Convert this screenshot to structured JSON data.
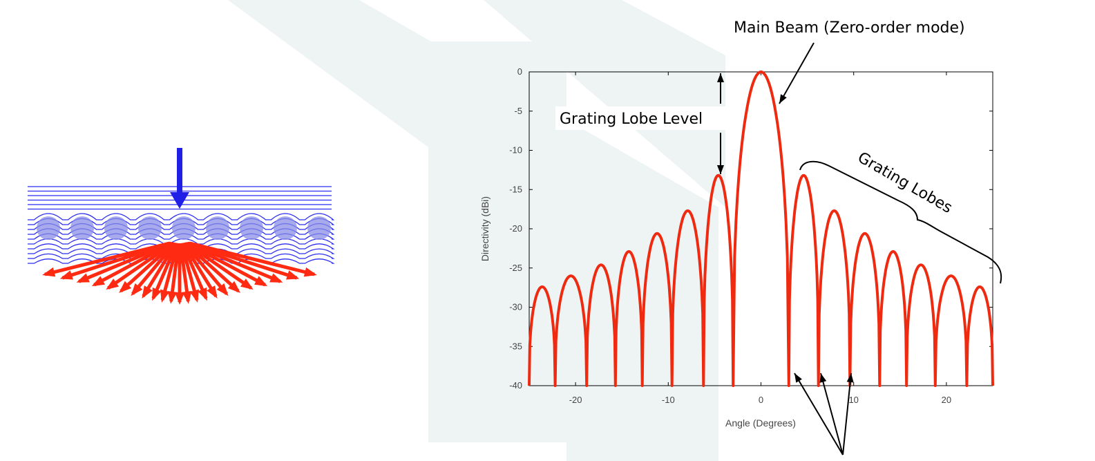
{
  "colors": {
    "background": "#ffffff",
    "watermark": "#eef4f4",
    "wave_lines": "#2a2cf0",
    "incident_arrow": "#1f1fe6",
    "element_circles": "#8a8ee6",
    "diffracted_arrows": "#ff2a12",
    "curve": "#ee2b10",
    "axes": "#000000",
    "annotation_arrows": "#000000"
  },
  "diagram": {
    "incident_arrow_icon": "down-arrow-icon",
    "element_count": 9,
    "diffracted_arrow_count": 23
  },
  "annotations": {
    "main_beam": "Main Beam (Zero-order mode)",
    "grating_lobe_level": "Grating Lobe Level",
    "grating_lobes": "Grating Lobes"
  },
  "chart_data": {
    "type": "line",
    "title": "",
    "xlabel": "Angle (Degrees)",
    "ylabel": "Directivity (dBi)",
    "xlim": [
      -25,
      25
    ],
    "ylim": [
      -40,
      0
    ],
    "xticks": [
      -20,
      -10,
      0,
      10,
      20
    ],
    "yticks": [
      0,
      -5,
      -10,
      -15,
      -20,
      -25,
      -30,
      -35,
      -40
    ],
    "grid": false,
    "series": [
      {
        "color": "#ee2b10",
        "peaks": [
          {
            "x": -23.7,
            "y": -27.4
          },
          {
            "x": -20.3,
            "y": -26.0
          },
          {
            "x": -17.3,
            "y": -24.6
          },
          {
            "x": -14.4,
            "y": -22.9
          },
          {
            "x": -11.2,
            "y": -20.6
          },
          {
            "x": -7.9,
            "y": -17.7
          },
          {
            "x": -4.6,
            "y": -13.2
          },
          {
            "x": 0,
            "y": 0
          },
          {
            "x": 4.6,
            "y": -13.2
          },
          {
            "x": 7.9,
            "y": -17.7
          },
          {
            "x": 11.2,
            "y": -20.6
          },
          {
            "x": 14.4,
            "y": -22.9
          },
          {
            "x": 17.3,
            "y": -24.6
          },
          {
            "x": 20.3,
            "y": -26.0
          },
          {
            "x": 23.7,
            "y": -27.4
          }
        ],
        "nulls": [
          -25,
          -22.2,
          -18.8,
          -15.7,
          -12.8,
          -9.6,
          -6.2,
          -3.0,
          3.0,
          6.2,
          9.6,
          12.8,
          15.7,
          18.8,
          22.2,
          25
        ]
      }
    ]
  }
}
